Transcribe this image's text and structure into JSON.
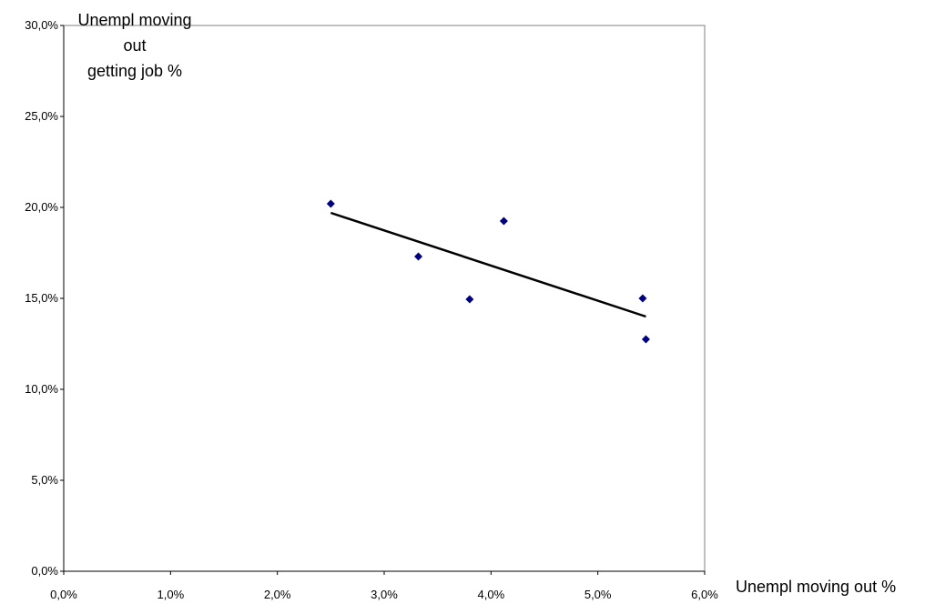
{
  "chart_data": {
    "type": "scatter",
    "xlabel": "Unempl moving out %",
    "ylabel_lines": [
      "Unempl moving",
      "out",
      "getting job %"
    ],
    "xlim": [
      0,
      6
    ],
    "ylim": [
      0,
      30
    ],
    "x_ticks": [
      0,
      1,
      2,
      3,
      4,
      5,
      6
    ],
    "y_ticks": [
      0,
      5,
      10,
      15,
      20,
      25,
      30
    ],
    "x_tick_labels": [
      "0,0%",
      "1,0%",
      "2,0%",
      "3,0%",
      "4,0%",
      "5,0%",
      "6,0%"
    ],
    "y_tick_labels": [
      "0,0%",
      "5,0%",
      "10,0%",
      "15,0%",
      "20,0%",
      "25,0%",
      "30,0%"
    ],
    "grid": false,
    "marker_color": "#000080",
    "series": [
      {
        "points": [
          {
            "x": 2.5,
            "y": 20.2
          },
          {
            "x": 3.32,
            "y": 17.3
          },
          {
            "x": 3.8,
            "y": 14.95
          },
          {
            "x": 4.12,
            "y": 19.25
          },
          {
            "x": 5.42,
            "y": 15.0
          },
          {
            "x": 5.45,
            "y": 12.75
          }
        ]
      }
    ],
    "trendline": {
      "type": "linear",
      "color": "#000000",
      "from": {
        "x": 2.5,
        "y": 19.7
      },
      "to": {
        "x": 5.45,
        "y": 14.0
      }
    }
  }
}
